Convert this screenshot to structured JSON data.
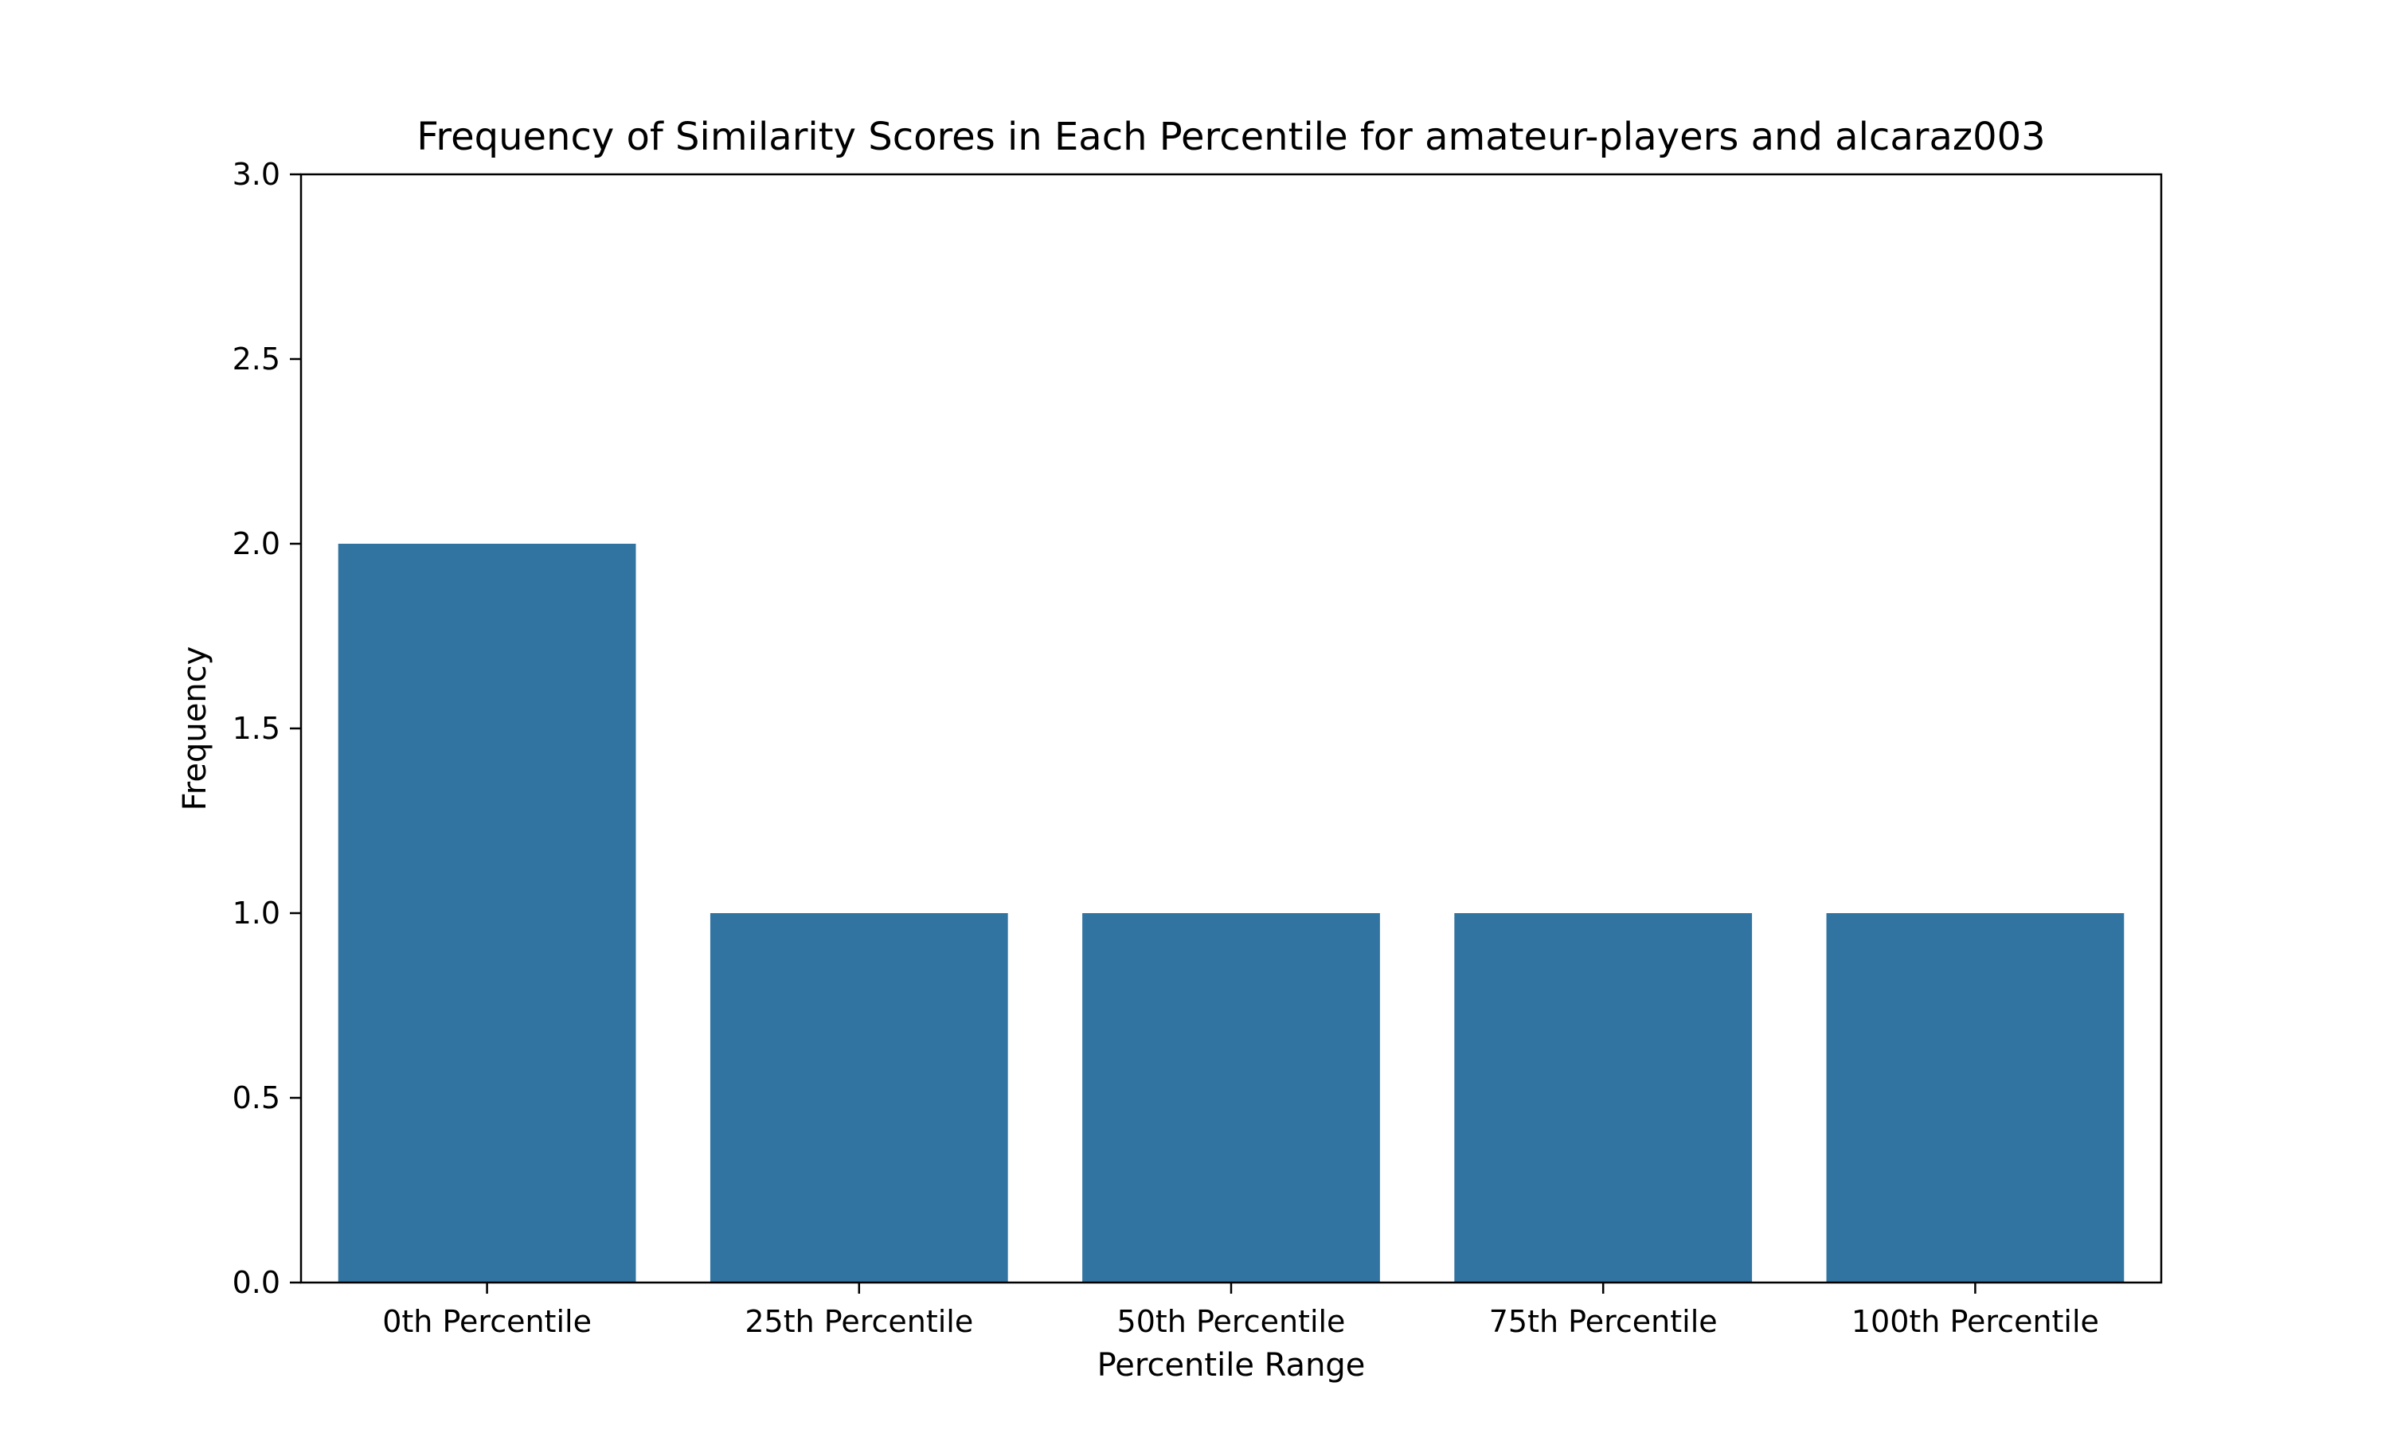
{
  "chart_data": {
    "type": "bar",
    "title": "Frequency of Similarity Scores in Each Percentile for amateur-players and alcaraz003",
    "xlabel": "Percentile Range",
    "ylabel": "Frequency",
    "categories": [
      "0th Percentile",
      "25th Percentile",
      "50th Percentile",
      "75th Percentile",
      "100th Percentile"
    ],
    "values": [
      2,
      1,
      1,
      1,
      1
    ],
    "ylim": [
      0,
      3
    ],
    "yticks": [
      "0.0",
      "0.5",
      "1.0",
      "1.5",
      "2.0",
      "2.5",
      "3.0"
    ],
    "grid": false,
    "bar_color": "#3274a1"
  }
}
